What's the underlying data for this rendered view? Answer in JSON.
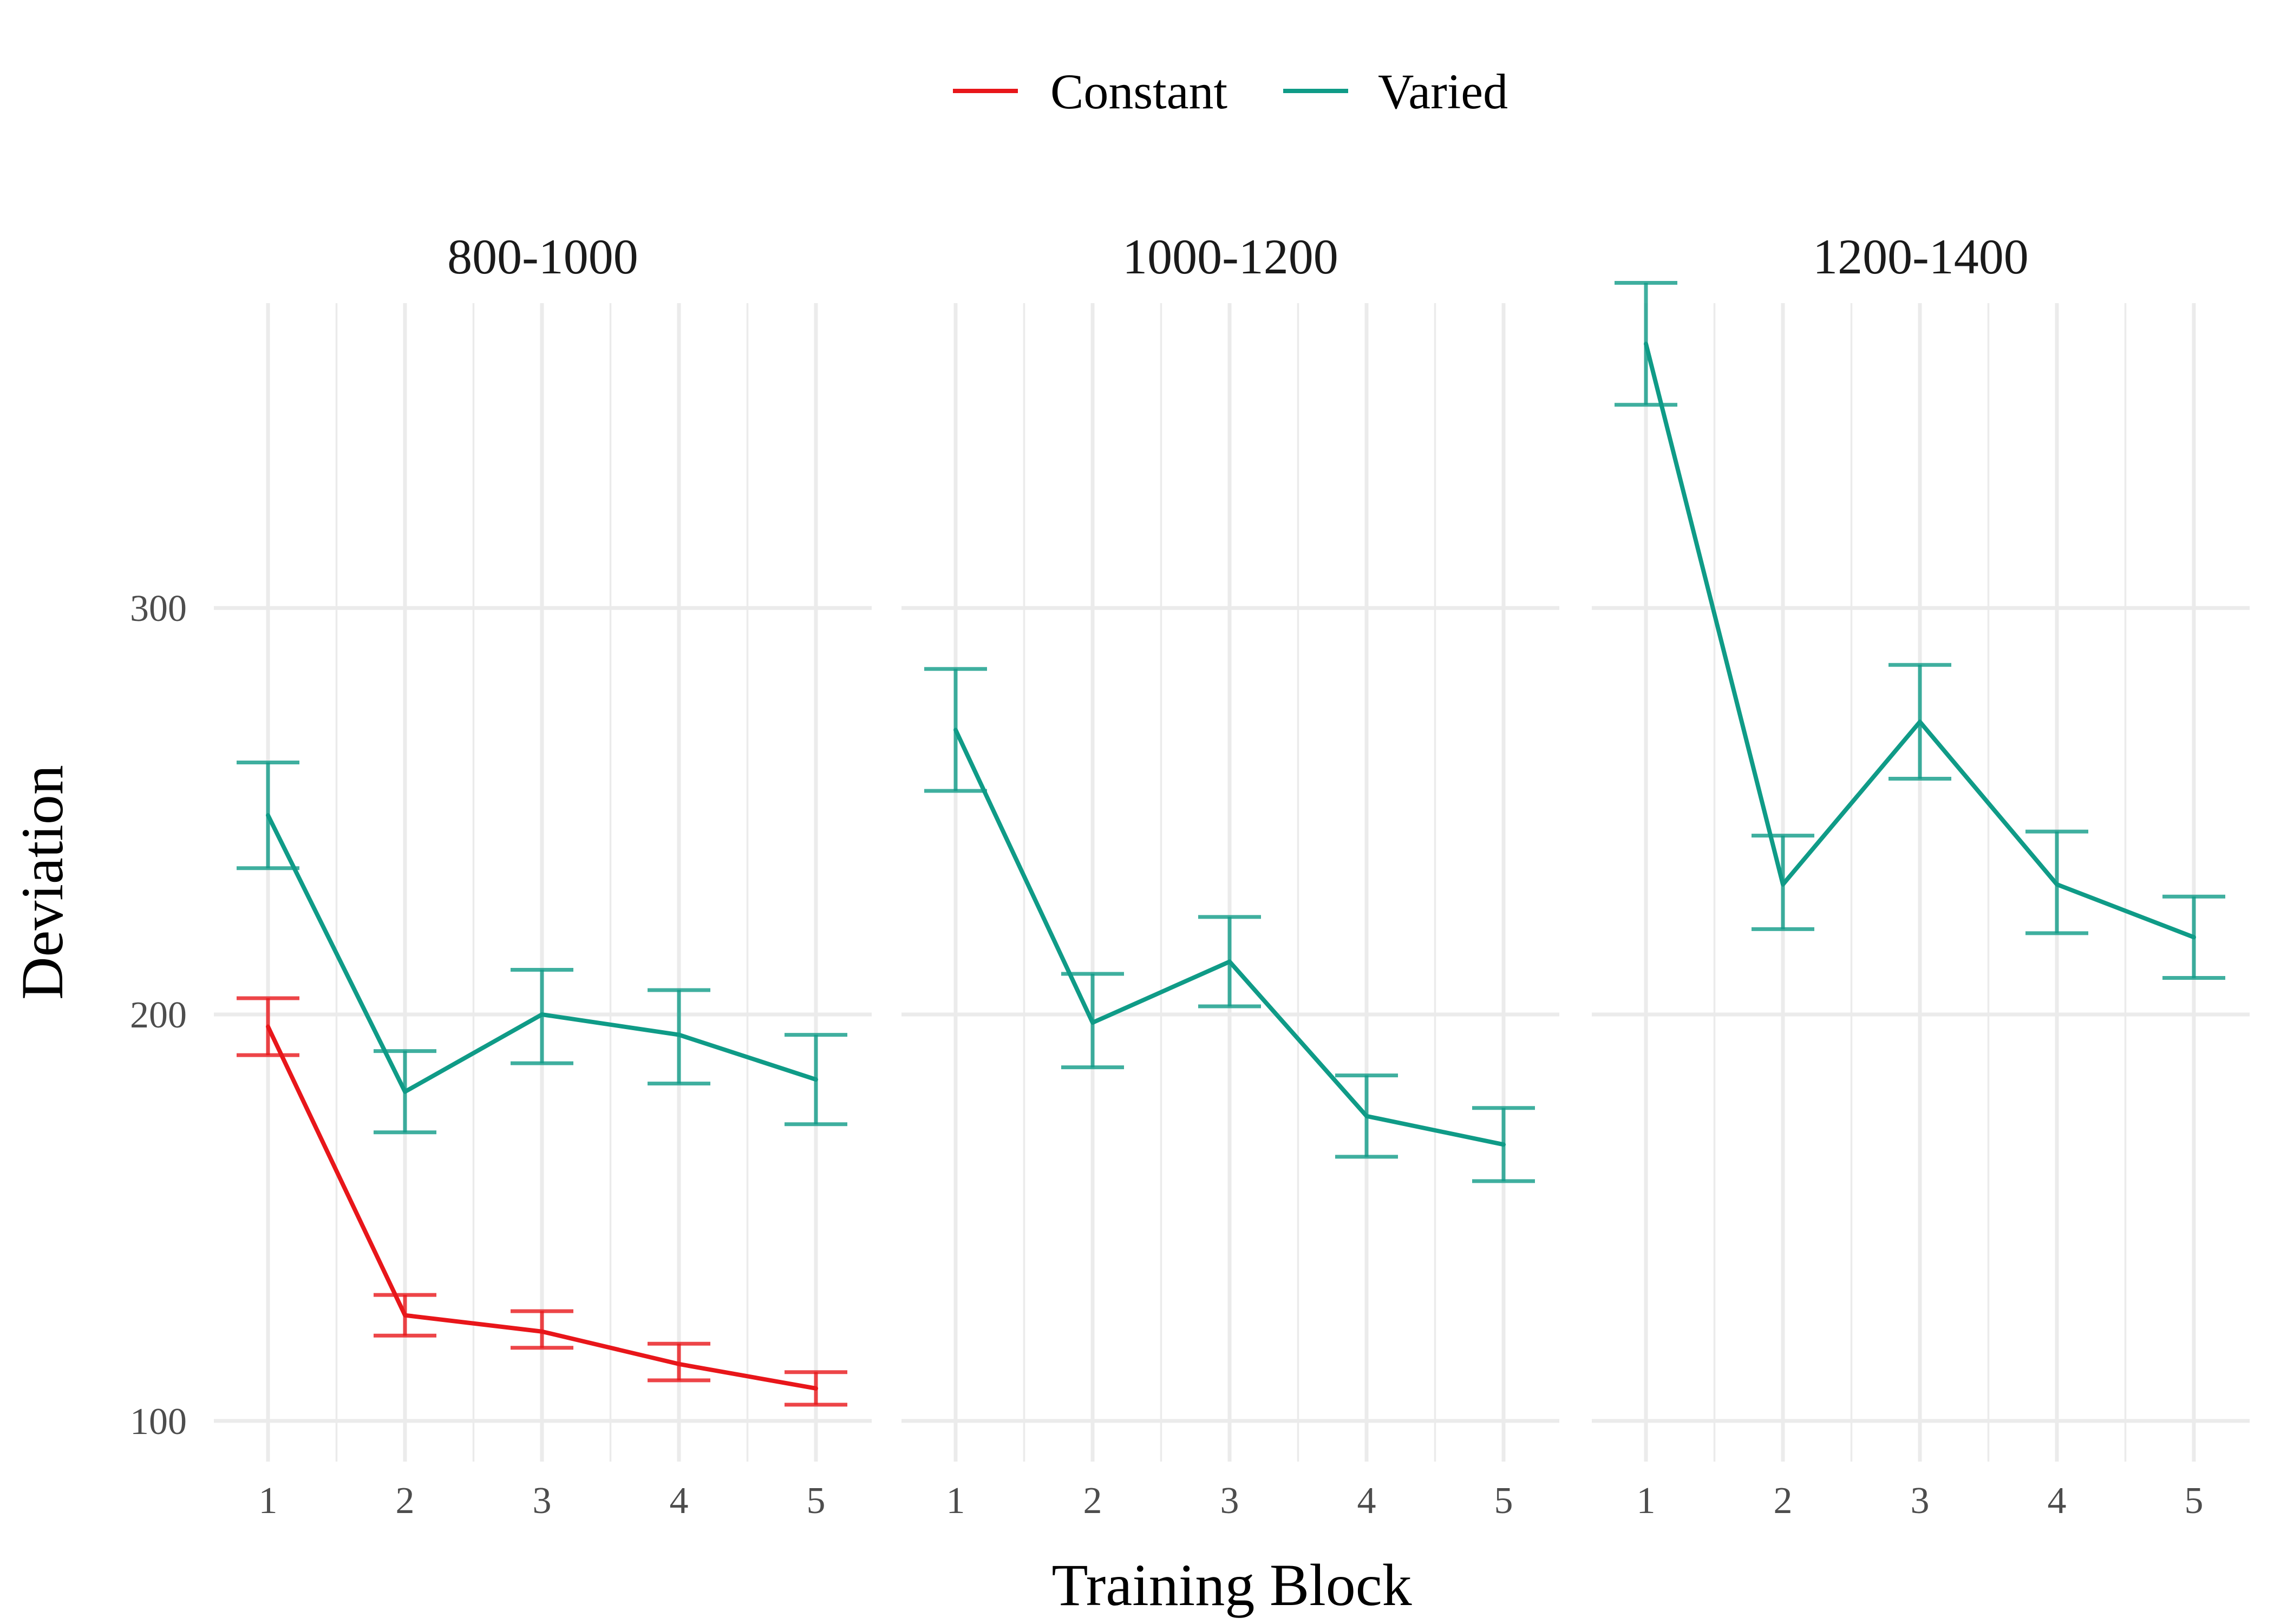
{
  "chart_data": {
    "type": "line",
    "xlabel": "Training Block",
    "ylabel": "Deviation",
    "x": [
      1,
      2,
      3,
      4,
      5
    ],
    "x_tick_labels": [
      "1",
      "2",
      "3",
      "4",
      "5"
    ],
    "ylim": [
      90,
      375
    ],
    "y_ticks": [
      100,
      200,
      300
    ],
    "y_tick_labels": [
      "100",
      "200",
      "300"
    ],
    "grid": true,
    "legend_position": "top",
    "legend": [
      {
        "name": "Constant",
        "color": "#e8161a"
      },
      {
        "name": "Varied",
        "color": "#0f9b87"
      }
    ],
    "panels": [
      {
        "title": "800-1000",
        "series": [
          {
            "name": "Constant",
            "color": "#e8161a",
            "values": [
              197,
              126,
              122,
              114,
              108
            ],
            "lower": [
              190,
              121,
              118,
              110,
              104
            ],
            "upper": [
              204,
              131,
              127,
              119,
              112
            ]
          },
          {
            "name": "Varied",
            "color": "#0f9b87",
            "values": [
              249,
              181,
              200,
              195,
              184
            ],
            "lower": [
              236,
              171,
              188,
              183,
              173
            ],
            "upper": [
              262,
              191,
              211,
              206,
              195
            ]
          }
        ]
      },
      {
        "title": "1000-1200",
        "series": [
          {
            "name": "Varied",
            "color": "#0f9b87",
            "values": [
              270,
              198,
              213,
              175,
              168
            ],
            "lower": [
              255,
              187,
              202,
              165,
              159
            ],
            "upper": [
              285,
              210,
              224,
              185,
              177
            ]
          }
        ]
      },
      {
        "title": "1200-1400",
        "series": [
          {
            "name": "Varied",
            "color": "#0f9b87",
            "values": [
              365,
              232,
              272,
              232,
              219
            ],
            "lower": [
              350,
              221,
              258,
              220,
              209
            ],
            "upper": [
              380,
              244,
              286,
              245,
              229
            ]
          }
        ]
      }
    ]
  }
}
